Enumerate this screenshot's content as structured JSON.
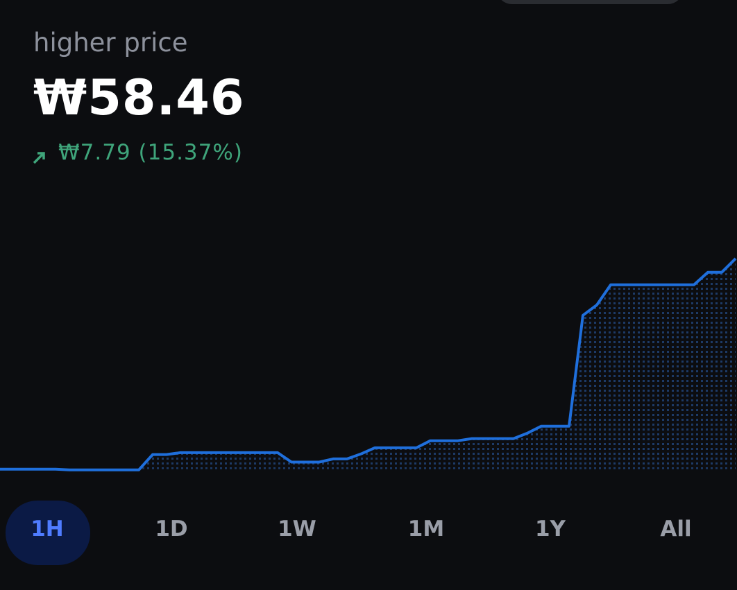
{
  "header": {
    "title": "higher price",
    "price": "₩58.46",
    "change": "₩7.79 (15.37%)"
  },
  "chart_data": {
    "type": "line",
    "color": "#1f6fdc",
    "values": [
      50.67,
      50.67,
      50.67,
      50.67,
      50.67,
      50.64,
      50.64,
      50.64,
      50.64,
      50.64,
      50.64,
      51.21,
      51.21,
      51.28,
      51.28,
      51.28,
      51.28,
      51.28,
      51.28,
      51.28,
      51.28,
      50.93,
      50.93,
      50.93,
      51.05,
      51.05,
      51.23,
      51.46,
      51.46,
      51.46,
      51.46,
      51.72,
      51.72,
      51.72,
      51.8,
      51.8,
      51.8,
      51.8,
      52.0,
      52.26,
      52.26,
      52.26,
      56.36,
      56.74,
      57.49,
      57.49,
      57.49,
      57.49,
      57.49,
      57.49,
      57.49,
      57.95,
      57.95,
      58.46
    ],
    "ylim": [
      50.2,
      59.2
    ]
  },
  "tabs": {
    "items": [
      "1H",
      "1D",
      "1W",
      "1M",
      "1Y",
      "All"
    ],
    "selected": 0
  }
}
